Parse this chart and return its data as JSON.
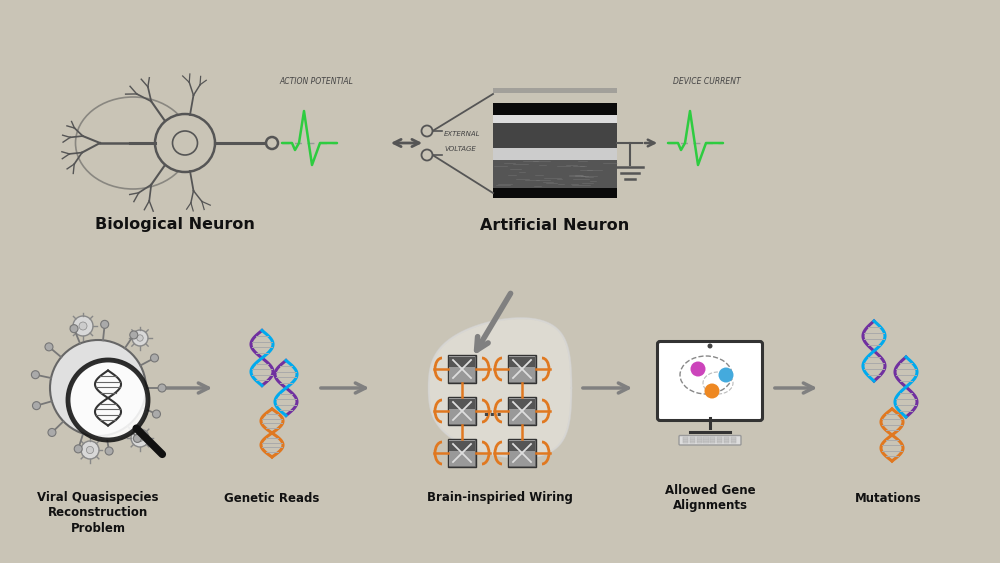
{
  "bg_color": "#c9c4b6",
  "green_color": "#2ecc40",
  "gray_color": "#808080",
  "dark_gray": "#555555",
  "light_gray": "#aaaaaa",
  "orange_color": "#e07820",
  "purple_color": "#7030a0",
  "blue_color": "#00aaee",
  "labels": {
    "bio_neuron": "Biological Neuron",
    "art_neuron": "Artificial Neuron",
    "viral": "Viral Quasispecies\nReconstruction\nProblem",
    "genetic": "Genetic Reads",
    "brain": "Brain-inspiried Wiring",
    "gene_align": "Allowed Gene\nAlignments",
    "mutations": "Mutations",
    "action_potential": "ACTION POTENTIAL",
    "device_current": "DEVICE CURRENT",
    "external_voltage": "EXTERNAL\nVOLTAGE"
  }
}
